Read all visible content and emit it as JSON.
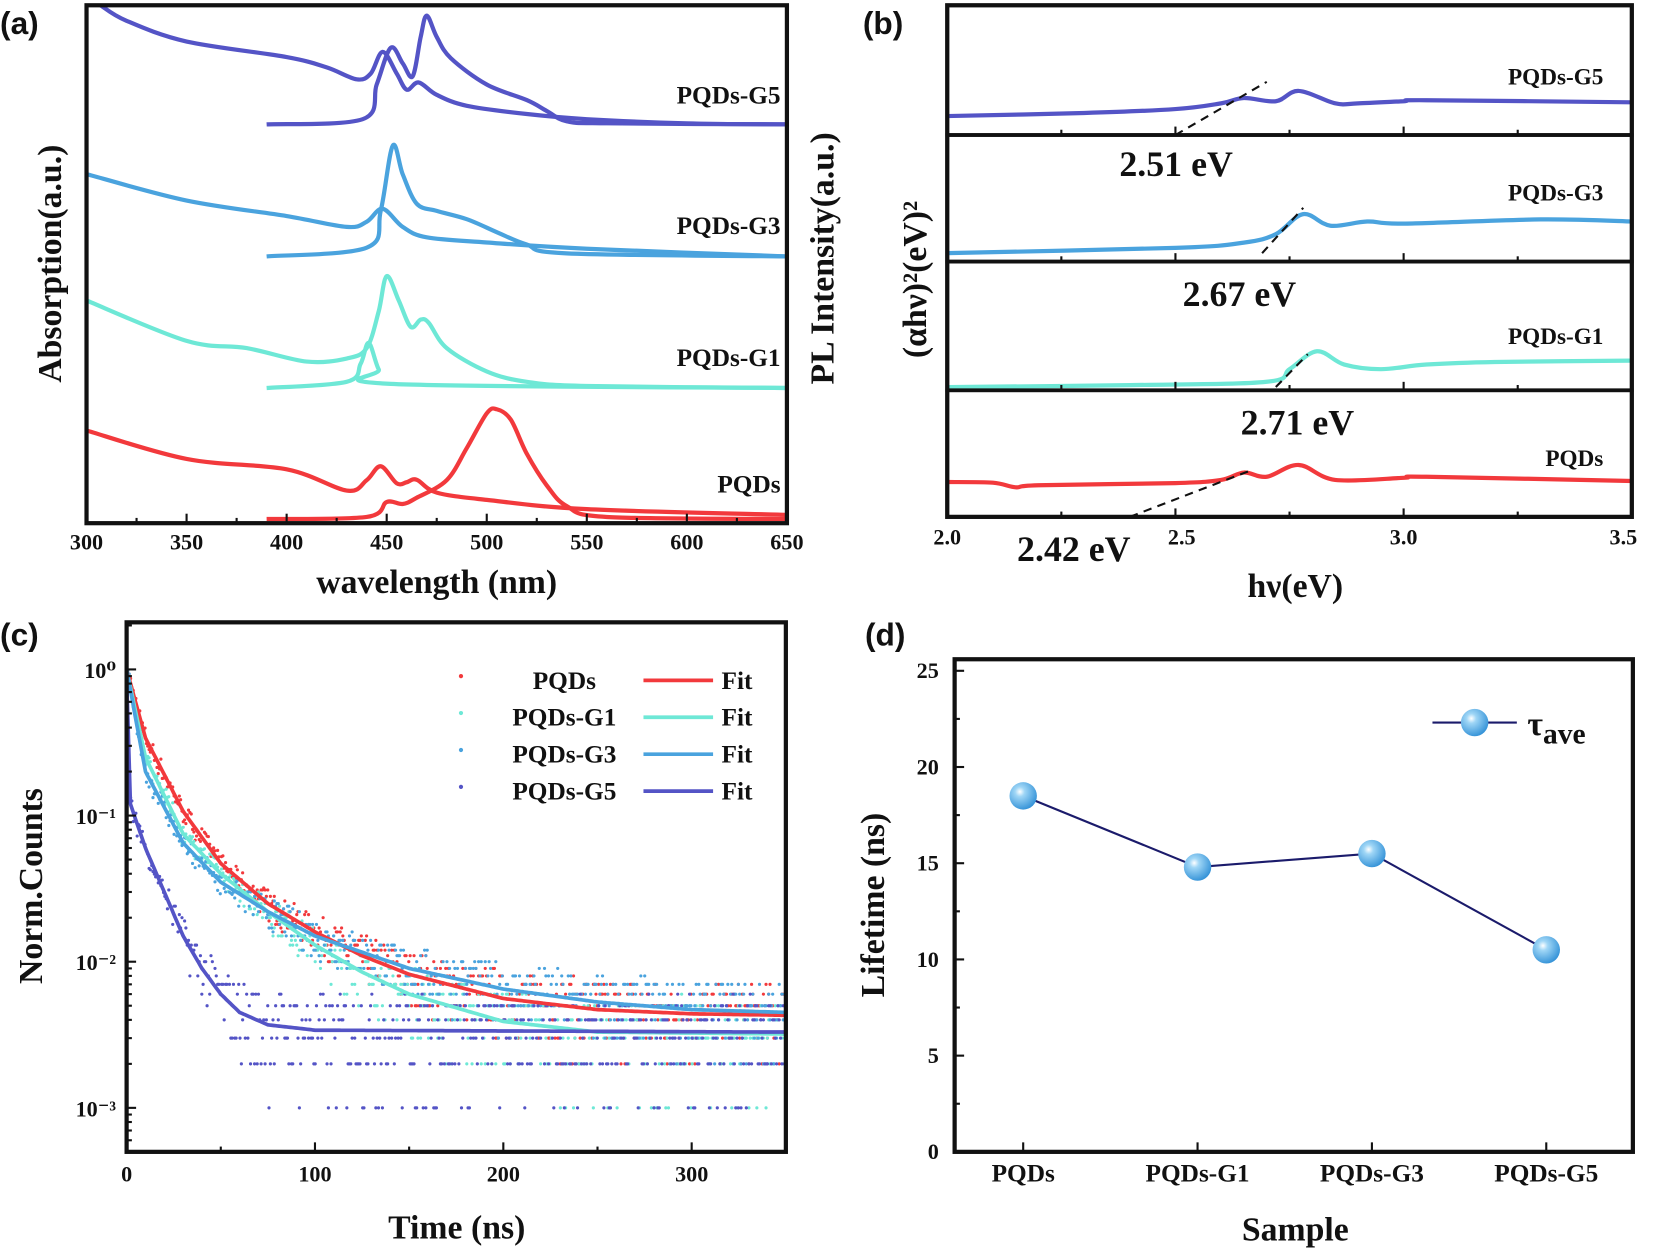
{
  "colors": {
    "PQDs": "#f2393c",
    "PQDs-G1": "#6ee8d6",
    "PQDs-G3": "#4aa3de",
    "PQDs-G5": "#5454c6",
    "lifetime_line": "#1b1b6b",
    "marker": "#4aa8e2",
    "axis": "#111111"
  },
  "panels": {
    "a": "(a)",
    "b": "(b)",
    "c": "(c)",
    "d": "(d)"
  },
  "chart_data": [
    {
      "panel": "a",
      "type": "line",
      "xlabel": "wavelength (nm)",
      "ylabel": "Absorption(a.u.)",
      "ylabel_right": "PL Intensity(a.u.)",
      "xlim": [
        300,
        650
      ],
      "xticks": [
        300,
        350,
        400,
        450,
        500,
        550,
        600,
        650
      ],
      "xtick_labels": [
        "300",
        "350",
        "400",
        "450",
        "500",
        "550",
        "600",
        "650"
      ],
      "ylim": [
        0,
        1
      ],
      "yticks_shown": false,
      "series": [
        {
          "name": "PQDs-G5",
          "kind": "absorption",
          "points": [
            [
              307,
              1.0
            ],
            [
              320,
              0.97
            ],
            [
              350,
              0.93
            ],
            [
              400,
              0.9
            ],
            [
              420,
              0.88
            ],
            [
              435,
              0.857
            ],
            [
              442,
              0.868
            ],
            [
              448,
              0.91
            ],
            [
              455,
              0.868
            ],
            [
              460,
              0.837
            ],
            [
              466,
              0.851
            ],
            [
              475,
              0.827
            ],
            [
              490,
              0.806
            ],
            [
              520,
              0.79
            ],
            [
              550,
              0.78
            ],
            [
              600,
              0.772
            ],
            [
              650,
              0.77
            ]
          ]
        },
        {
          "name": "PQDs-G5",
          "kind": "PL",
          "points": [
            [
              390,
              0.77
            ],
            [
              438,
              0.78
            ],
            [
              445,
              0.847
            ],
            [
              452,
              0.918
            ],
            [
              458,
              0.888
            ],
            [
              463,
              0.863
            ],
            [
              467,
              0.939
            ],
            [
              470,
              0.98
            ],
            [
              475,
              0.939
            ],
            [
              482,
              0.898
            ],
            [
              500,
              0.847
            ],
            [
              520,
              0.817
            ],
            [
              530,
              0.796
            ],
            [
              540,
              0.776
            ],
            [
              560,
              0.772
            ],
            [
              650,
              0.77
            ]
          ]
        },
        {
          "name": "PQDs-G3",
          "kind": "absorption",
          "points": [
            [
              300,
              0.674
            ],
            [
              350,
              0.623
            ],
            [
              400,
              0.593
            ],
            [
              430,
              0.572
            ],
            [
              440,
              0.582
            ],
            [
              448,
              0.607
            ],
            [
              458,
              0.572
            ],
            [
              470,
              0.552
            ],
            [
              500,
              0.542
            ],
            [
              550,
              0.53
            ],
            [
              650,
              0.515
            ]
          ]
        },
        {
          "name": "PQDs-G3",
          "kind": "PL",
          "points": [
            [
              390,
              0.515
            ],
            [
              440,
              0.532
            ],
            [
              447,
              0.603
            ],
            [
              453,
              0.729
            ],
            [
              458,
              0.674
            ],
            [
              465,
              0.617
            ],
            [
              475,
              0.603
            ],
            [
              490,
              0.587
            ],
            [
              505,
              0.562
            ],
            [
              520,
              0.538
            ],
            [
              540,
              0.521
            ],
            [
              650,
              0.515
            ]
          ]
        },
        {
          "name": "PQDs-G1",
          "kind": "absorption",
          "points": [
            [
              300,
              0.43
            ],
            [
              350,
              0.352
            ],
            [
              380,
              0.338
            ],
            [
              410,
              0.312
            ],
            [
              430,
              0.318
            ],
            [
              440,
              0.338
            ],
            [
              446,
              0.409
            ],
            [
              450,
              0.477
            ],
            [
              456,
              0.43
            ],
            [
              462,
              0.379
            ],
            [
              467,
              0.393
            ],
            [
              471,
              0.387
            ],
            [
              480,
              0.338
            ],
            [
              500,
              0.293
            ],
            [
              520,
              0.273
            ],
            [
              550,
              0.265
            ],
            [
              650,
              0.261
            ]
          ]
        },
        {
          "name": "PQDs-G1",
          "kind": "PL",
          "points": [
            [
              390,
              0.261
            ],
            [
              430,
              0.273
            ],
            [
              437,
              0.308
            ],
            [
              441,
              0.348
            ],
            [
              446,
              0.297
            ],
            [
              452,
              0.269
            ],
            [
              650,
              0.261
            ]
          ]
        },
        {
          "name": "PQDs",
          "kind": "absorption",
          "points": [
            [
              300,
              0.179
            ],
            [
              350,
              0.124
            ],
            [
              400,
              0.104
            ],
            [
              430,
              0.063
            ],
            [
              440,
              0.083
            ],
            [
              447,
              0.11
            ],
            [
              455,
              0.077
            ],
            [
              460,
              0.079
            ],
            [
              465,
              0.084
            ],
            [
              475,
              0.059
            ],
            [
              500,
              0.045
            ],
            [
              550,
              0.027
            ],
            [
              650,
              0.016
            ]
          ]
        },
        {
          "name": "PQDs",
          "kind": "PL",
          "points": [
            [
              390,
              0.008
            ],
            [
              440,
              0.012
            ],
            [
              450,
              0.041
            ],
            [
              458,
              0.037
            ],
            [
              465,
              0.049
            ],
            [
              480,
              0.083
            ],
            [
              490,
              0.145
            ],
            [
              500,
              0.212
            ],
            [
              505,
              0.22
            ],
            [
              512,
              0.2
            ],
            [
              520,
              0.134
            ],
            [
              530,
              0.073
            ],
            [
              540,
              0.033
            ],
            [
              560,
              0.012
            ],
            [
              650,
              0.008
            ]
          ]
        }
      ],
      "labels": [
        "PQDs-G5",
        "PQDs-G3",
        "PQDs-G1",
        "PQDs"
      ]
    },
    {
      "panel": "b",
      "type": "line",
      "xlabel": "hν(eV)",
      "ylabel": "(αhν)²(eV)²",
      "xlim": [
        2.0,
        3.5
      ],
      "xticks": [
        2.0,
        2.5,
        3.0,
        3.5
      ],
      "xtick_labels": [
        "2.0",
        "2.5",
        "3.0",
        "3.5"
      ],
      "stacked_subplots": 4,
      "ylim": [
        0,
        1
      ],
      "series": [
        {
          "name": "PQDs-G5",
          "points": [
            [
              2.0,
              0.146
            ],
            [
              2.3,
              0.17
            ],
            [
              2.5,
              0.2
            ],
            [
              2.6,
              0.244
            ],
            [
              2.65,
              0.285
            ],
            [
              2.72,
              0.26
            ],
            [
              2.77,
              0.34
            ],
            [
              2.85,
              0.244
            ],
            [
              2.9,
              0.244
            ],
            [
              3.0,
              0.26
            ],
            [
              3.05,
              0.268
            ],
            [
              3.5,
              0.252
            ]
          ],
          "tangent": [
            [
              2.5,
              0.0
            ],
            [
              2.7,
              0.41
            ]
          ],
          "band_gap": "2.51 eV"
        },
        {
          "name": "PQDs-G3",
          "points": [
            [
              2.0,
              0.067
            ],
            [
              2.5,
              0.108
            ],
            [
              2.65,
              0.15
            ],
            [
              2.72,
              0.217
            ],
            [
              2.78,
              0.375
            ],
            [
              2.84,
              0.283
            ],
            [
              2.92,
              0.317
            ],
            [
              3.0,
              0.3
            ],
            [
              3.3,
              0.333
            ],
            [
              3.5,
              0.317
            ]
          ],
          "tangent": [
            [
              2.69,
              0.067
            ],
            [
              2.78,
              0.425
            ]
          ],
          "band_gap": "2.67 eV"
        },
        {
          "name": "PQDs-G1",
          "points": [
            [
              2.0,
              0.025
            ],
            [
              2.4,
              0.04
            ],
            [
              2.7,
              0.066
            ],
            [
              2.75,
              0.164
            ],
            [
              2.81,
              0.303
            ],
            [
              2.87,
              0.2
            ],
            [
              2.95,
              0.164
            ],
            [
              3.05,
              0.2
            ],
            [
              3.2,
              0.22
            ],
            [
              3.5,
              0.23
            ]
          ],
          "tangent": [
            [
              2.72,
              0.025
            ],
            [
              2.79,
              0.28
            ]
          ],
          "band_gap": "2.71 eV"
        },
        {
          "name": "PQDs",
          "points": [
            [
              2.0,
              0.275
            ],
            [
              2.1,
              0.27
            ],
            [
              2.15,
              0.233
            ],
            [
              2.2,
              0.25
            ],
            [
              2.5,
              0.267
            ],
            [
              2.6,
              0.292
            ],
            [
              2.65,
              0.35
            ],
            [
              2.7,
              0.317
            ],
            [
              2.77,
              0.41
            ],
            [
              2.85,
              0.292
            ],
            [
              3.0,
              0.308
            ],
            [
              3.05,
              0.317
            ],
            [
              3.5,
              0.283
            ]
          ],
          "tangent": [
            [
              2.4,
              0.0
            ],
            [
              2.66,
              0.36
            ]
          ],
          "band_gap": "2.42 eV"
        }
      ]
    },
    {
      "panel": "c",
      "type": "scatter",
      "xlabel": "Time (ns)",
      "ylabel": "Norm.Counts",
      "xlim": [
        0,
        350
      ],
      "xticks": [
        0,
        100,
        200,
        300
      ],
      "xtick_labels": [
        "0",
        "100",
        "200",
        "300"
      ],
      "yscale": "log",
      "ylim": [
        0.0005,
        2.1
      ],
      "yticks": [
        1,
        0.1,
        0.01,
        0.001
      ],
      "ytick_labels": [
        "10⁰",
        "10⁻¹",
        "10⁻²",
        "10⁻³"
      ],
      "legend_position": "top-right",
      "fit_label": "Fit",
      "series": [
        {
          "name": "PQDs",
          "fit": [
            [
              0,
              1.0
            ],
            [
              10,
              0.34
            ],
            [
              30,
              0.107
            ],
            [
              50,
              0.047
            ],
            [
              75,
              0.025
            ],
            [
              100,
              0.016
            ],
            [
              125,
              0.011
            ],
            [
              150,
              0.0082
            ],
            [
              200,
              0.0056
            ],
            [
              250,
              0.0047
            ],
            [
              300,
              0.0044
            ],
            [
              350,
              0.0043
            ]
          ]
        },
        {
          "name": "PQDs-G1",
          "fit": [
            [
              0,
              1.0
            ],
            [
              10,
              0.25
            ],
            [
              30,
              0.075
            ],
            [
              50,
              0.04
            ],
            [
              75,
              0.022
            ],
            [
              100,
              0.013
            ],
            [
              125,
              0.0085
            ],
            [
              150,
              0.006
            ],
            [
              200,
              0.0039
            ],
            [
              250,
              0.0033
            ],
            [
              350,
              0.0032
            ]
          ]
        },
        {
          "name": "PQDs-G3",
          "fit": [
            [
              0,
              1.0
            ],
            [
              10,
              0.2
            ],
            [
              30,
              0.065
            ],
            [
              50,
              0.035
            ],
            [
              75,
              0.022
            ],
            [
              100,
              0.015
            ],
            [
              150,
              0.009
            ],
            [
              200,
              0.0065
            ],
            [
              250,
              0.0053
            ],
            [
              300,
              0.0047
            ],
            [
              350,
              0.0045
            ]
          ]
        },
        {
          "name": "PQDs-G5",
          "fit": [
            [
              0,
              0.9
            ],
            [
              2,
              0.12
            ],
            [
              10,
              0.06
            ],
            [
              20,
              0.03
            ],
            [
              30,
              0.015
            ],
            [
              40,
              0.009
            ],
            [
              50,
              0.006
            ],
            [
              60,
              0.0045
            ],
            [
              75,
              0.0037
            ],
            [
              100,
              0.0034
            ],
            [
              350,
              0.0033
            ]
          ]
        }
      ]
    },
    {
      "panel": "d",
      "type": "line",
      "xlabel": "Sample",
      "ylabel": "Lifetime (ns)",
      "categories": [
        "PQDs",
        "PQDs-G1",
        "PQDs-G3",
        "PQDs-G5"
      ],
      "ylim": [
        0,
        25.6
      ],
      "yticks": [
        0,
        5,
        10,
        15,
        20,
        25
      ],
      "ytick_labels": [
        "0",
        "5",
        "10",
        "15",
        "20",
        "25"
      ],
      "legend_position": "top-right",
      "legend": {
        "symbol": "τ",
        "subscript": "ave"
      },
      "series": [
        {
          "name": "τave",
          "values": [
            18.5,
            14.8,
            15.5,
            10.5
          ]
        }
      ]
    }
  ]
}
